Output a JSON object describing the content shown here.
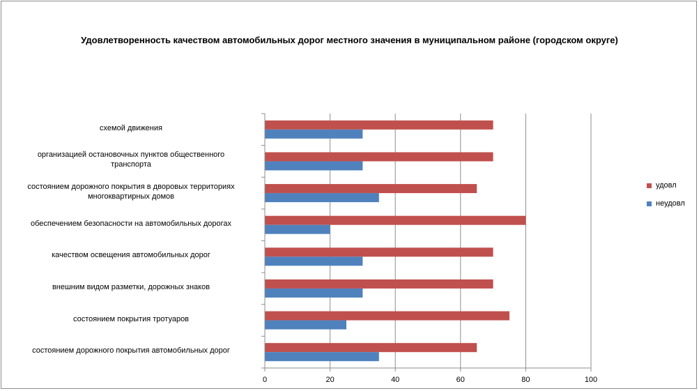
{
  "chart_data": {
    "type": "bar",
    "orientation": "horizontal",
    "title": "Удовлетворенность качеством автомобильных дорог местного значения в  муниципальном районе (городском округе)",
    "categories": [
      "схемой движения",
      "организацией остановочных пунктов общественного транспорта",
      "состоянием дорожного покрытия  в дворовых территориях многоквартирных домов",
      "обеспечением  безопасности на автомобильных дорогах",
      "качеством  освещения  автомобильных дорог",
      "внешним  видом разметки, дорожных знаков",
      "состоянием покрытия тротуаров",
      "состоянием дорожного покрытия автомобильных дорог"
    ],
    "category_lines": [
      [
        "схемой движения"
      ],
      [
        "организацией остановочных пунктов общественного",
        "транспорта"
      ],
      [
        "состоянием дорожного покрытия  в дворовых территориях",
        "многоквартирных домов"
      ],
      [
        "обеспечением  безопасности на автомобильных дорогах"
      ],
      [
        "качеством  освещения  автомобильных дорог"
      ],
      [
        "внешним  видом разметки, дорожных знаков"
      ],
      [
        "состоянием покрытия тротуаров"
      ],
      [
        "состоянием дорожного покрытия автомобильных дорог"
      ]
    ],
    "series": [
      {
        "name": "удовл",
        "color": "#c0504d",
        "values": [
          70,
          70,
          65,
          80,
          70,
          70,
          75,
          65
        ]
      },
      {
        "name": "неудовл",
        "color": "#4f81bd",
        "values": [
          30,
          30,
          35,
          20,
          30,
          30,
          25,
          35
        ]
      }
    ],
    "x_ticks": [
      "0",
      "20",
      "40",
      "60",
      "80",
      "100"
    ],
    "xlim": [
      0,
      100
    ],
    "grid": "vertical",
    "legend_position": "right"
  }
}
